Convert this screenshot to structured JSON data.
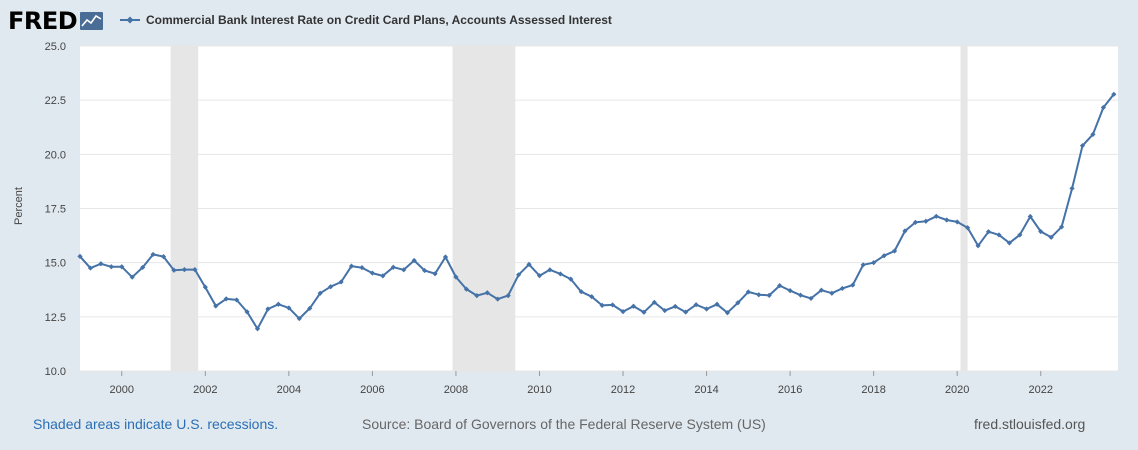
{
  "logo": {
    "text": "FRED"
  },
  "colors": {
    "line": "#4572a7",
    "plot_bg": "#ffffff",
    "page_bg": "#e1e9f0",
    "recession": "#e6e6e6",
    "grid": "#e6e6e6"
  },
  "chart_data": {
    "type": "line",
    "title": "",
    "xlabel": "",
    "ylabel": "Percent",
    "ylim": [
      10.0,
      25.0
    ],
    "yticks": [
      "10.0",
      "12.5",
      "15.0",
      "17.5",
      "20.0",
      "22.5",
      "25.0"
    ],
    "xlim": [
      1999.0,
      2023.85
    ],
    "xticks": [
      "2000",
      "2002",
      "2004",
      "2006",
      "2008",
      "2010",
      "2012",
      "2014",
      "2016",
      "2018",
      "2020",
      "2022"
    ],
    "grid": true,
    "legend_position": "top-left",
    "recessions": [
      [
        2001.17,
        2001.83
      ],
      [
        2007.92,
        2009.42
      ],
      [
        2020.08,
        2020.25
      ]
    ],
    "series": [
      {
        "name": "Commercial Bank Interest Rate on Credit Card Plans, Accounts Assessed Interest",
        "x": [
          1999.0,
          1999.25,
          1999.5,
          1999.75,
          2000.0,
          2000.25,
          2000.5,
          2000.75,
          2001.0,
          2001.25,
          2001.5,
          2001.75,
          2002.0,
          2002.25,
          2002.5,
          2002.75,
          2003.0,
          2003.25,
          2003.5,
          2003.75,
          2004.0,
          2004.25,
          2004.5,
          2004.75,
          2005.0,
          2005.25,
          2005.5,
          2005.75,
          2006.0,
          2006.25,
          2006.5,
          2006.75,
          2007.0,
          2007.25,
          2007.5,
          2007.75,
          2008.0,
          2008.25,
          2008.5,
          2008.75,
          2009.0,
          2009.25,
          2009.5,
          2009.75,
          2010.0,
          2010.25,
          2010.5,
          2010.75,
          2011.0,
          2011.25,
          2011.5,
          2011.75,
          2012.0,
          2012.25,
          2012.5,
          2012.75,
          2013.0,
          2013.25,
          2013.5,
          2013.75,
          2014.0,
          2014.25,
          2014.5,
          2014.75,
          2015.0,
          2015.25,
          2015.5,
          2015.75,
          2016.0,
          2016.25,
          2016.5,
          2016.75,
          2017.0,
          2017.25,
          2017.5,
          2017.75,
          2018.0,
          2018.25,
          2018.5,
          2018.75,
          2019.0,
          2019.25,
          2019.5,
          2019.75,
          2020.0,
          2020.25,
          2020.5,
          2020.75,
          2021.0,
          2021.25,
          2021.5,
          2021.75,
          2022.0,
          2022.25,
          2022.5,
          2022.75,
          2023.0,
          2023.25,
          2023.5,
          2023.75
        ],
        "values": [
          15.29,
          14.75,
          14.95,
          14.81,
          14.81,
          14.33,
          14.78,
          15.38,
          15.28,
          14.65,
          14.68,
          14.68,
          13.87,
          13.0,
          13.33,
          13.28,
          12.73,
          11.95,
          12.86,
          13.08,
          12.91,
          12.42,
          12.89,
          13.59,
          13.89,
          14.11,
          14.84,
          14.77,
          14.52,
          14.39,
          14.79,
          14.67,
          15.1,
          14.64,
          14.49,
          15.26,
          14.34,
          13.78,
          13.48,
          13.61,
          13.32,
          13.48,
          14.44,
          14.92,
          14.4,
          14.67,
          14.48,
          14.24,
          13.66,
          13.43,
          13.03,
          13.05,
          12.74,
          12.99,
          12.71,
          13.17,
          12.79,
          12.98,
          12.72,
          13.06,
          12.86,
          13.08,
          12.69,
          13.15,
          13.65,
          13.52,
          13.49,
          13.94,
          13.71,
          13.5,
          13.35,
          13.73,
          13.59,
          13.81,
          13.97,
          14.9,
          15.0,
          15.32,
          15.54,
          16.46,
          16.86,
          16.91,
          17.14,
          16.97,
          16.88,
          16.61,
          15.78,
          16.43,
          16.28,
          15.91,
          16.28,
          17.13,
          16.44,
          16.17,
          16.65,
          18.43,
          20.4,
          20.92,
          22.16,
          22.77
        ]
      }
    ]
  },
  "footer": {
    "recession_note": "Shaded areas indicate U.S. recessions.",
    "source": "Source: Board of Governors of the Federal Reserve System (US)",
    "url": "fred.stlouisfed.org"
  }
}
